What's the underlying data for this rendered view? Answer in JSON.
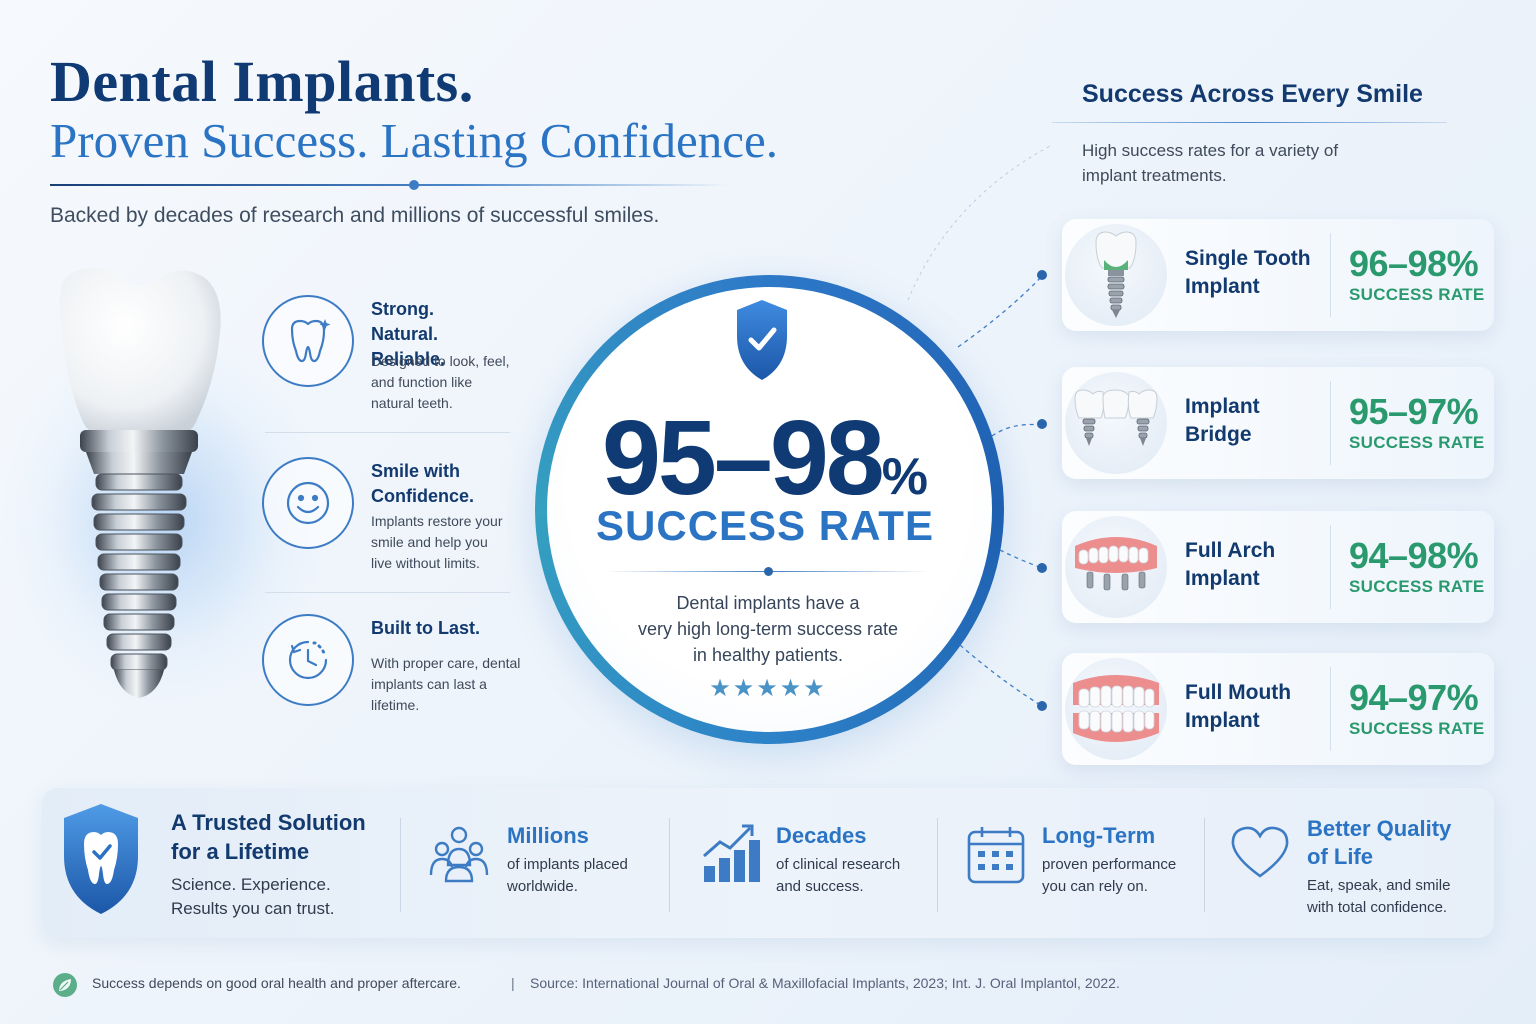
{
  "header": {
    "title": "Dental Implants.",
    "subtitle": "Proven Success. Lasting Confidence.",
    "tagline": "Backed by decades of research and millions of successful smiles."
  },
  "features": [
    {
      "icon": "tooth-icon",
      "title_1": "Strong.",
      "title_2": "Natural. Reliable.",
      "desc": [
        "Designed to look, feel,",
        "and function like",
        "natural teeth."
      ]
    },
    {
      "icon": "smile-icon",
      "title_1": "Smile with",
      "title_2": "Confidence.",
      "desc": [
        "Implants restore your",
        "smile and help you",
        "live without limits."
      ]
    },
    {
      "icon": "clock-icon",
      "title_1": "Built to Last.",
      "title_2": "",
      "desc": [
        "With proper care, dental",
        "implants can last a",
        "lifetime."
      ]
    }
  ],
  "center": {
    "icon": "shield-check-icon",
    "percent": "95–98",
    "percent_sign": "%",
    "label": "SUCCESS RATE",
    "desc": [
      "Dental implants have a",
      "very high long-term success rate",
      "in healthy patients."
    ],
    "stars": "★★★★★",
    "rating": 5
  },
  "right": {
    "title": "Success Across Every Smile",
    "subtitle": [
      "High success rates for a variety of",
      "implant treatments."
    ],
    "cards": [
      {
        "icon": "single-tooth-implant-icon",
        "name_1": "Single Tooth",
        "name_2": "Implant",
        "rate": "96–98%",
        "label": "SUCCESS RATE"
      },
      {
        "icon": "implant-bridge-icon",
        "name_1": "Implant",
        "name_2": "Bridge",
        "rate": "95–97%",
        "label": "SUCCESS RATE"
      },
      {
        "icon": "full-arch-implant-icon",
        "name_1": "Full Arch",
        "name_2": "Implant",
        "rate": "94–98%",
        "label": "SUCCESS RATE"
      },
      {
        "icon": "full-mouth-implant-icon",
        "name_1": "Full Mouth",
        "name_2": "Implant",
        "rate": "94–97%",
        "label": "SUCCESS RATE"
      }
    ]
  },
  "bottom": {
    "trusted": {
      "icon": "shield-tooth-icon",
      "title_1": "A Trusted Solution",
      "title_2": "for a Lifetime",
      "desc_1": "Science. Experience.",
      "desc_2": "Results you can trust."
    },
    "stats": [
      {
        "icon": "people-icon",
        "title": "Millions",
        "desc": [
          "of implants placed",
          "worldwide."
        ]
      },
      {
        "icon": "growth-chart-icon",
        "title": "Decades",
        "desc": [
          "of clinical research",
          "and success."
        ]
      },
      {
        "icon": "calendar-icon",
        "title": "Long-Term",
        "desc": [
          "proven performance",
          "you can rely on."
        ]
      },
      {
        "icon": "heart-icon",
        "title_1": "Better Quality",
        "title_2": "of Life",
        "desc": [
          "Eat, speak, and smile",
          "with total confidence."
        ]
      }
    ]
  },
  "footer": {
    "icon": "leaf-icon",
    "note": "Success depends on good oral health and proper aftercare.",
    "separator": "|",
    "source": "Source: International Journal of Oral & Maxillofacial Implants, 2023; Int. J. Oral Implantol, 2022."
  },
  "colors": {
    "navy": "#0f3a73",
    "blue": "#2b74c4",
    "green": "#2a9a6e"
  }
}
